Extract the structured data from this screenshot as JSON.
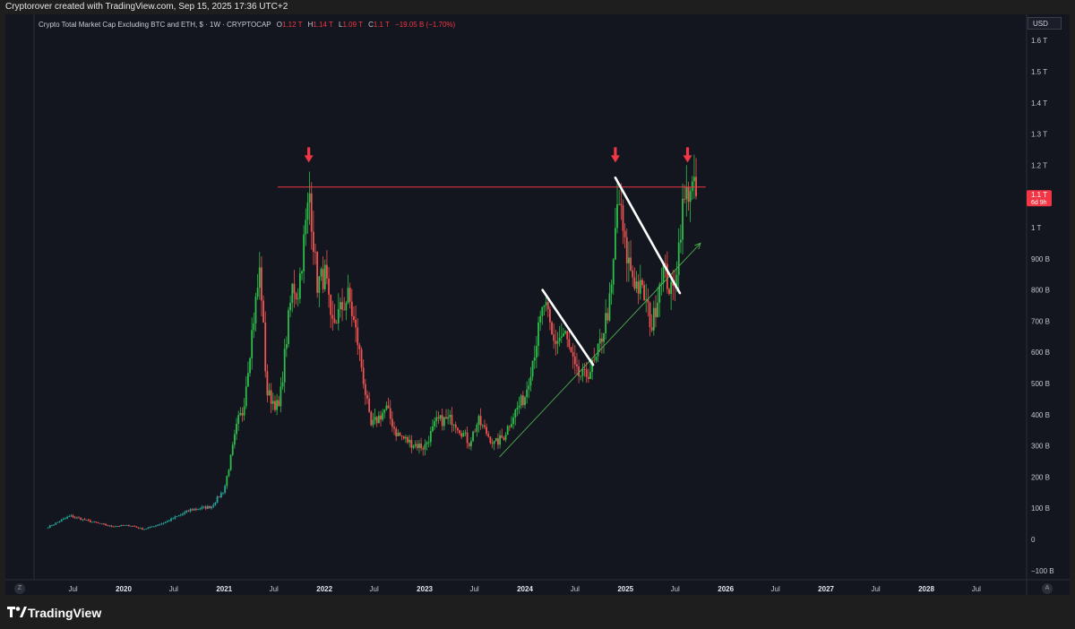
{
  "header": {
    "attribution": "Cryptorover created with TradingView.com, Sep 15, 2025 17:36 UTC+2"
  },
  "legend": {
    "title": "Crypto Total Market Cap Excluding BTC and ETH, $ · 1W · CRYPTOCAP",
    "o_label": "O",
    "o_value": "1.12 T",
    "h_label": "H",
    "h_value": "1.14 T",
    "l_label": "L",
    "l_value": "1.09 T",
    "c_label": "C",
    "c_value": "1.1 T",
    "change": "−19.05 B (−1.70%)"
  },
  "price_scale": {
    "currency": "USD",
    "labels": [
      "1.6 T",
      "1.5 T",
      "1.4 T",
      "1.3 T",
      "1.2 T",
      "1.1 T",
      "1 T",
      "900 B",
      "800 B",
      "700 B",
      "600 B",
      "500 B",
      "400 B",
      "300 B",
      "200 B",
      "100 B",
      "0",
      "−100 B"
    ],
    "current_price": "1.1 T",
    "countdown": "6d 9h"
  },
  "time_scale": {
    "labels": [
      "Jul",
      "2020",
      "Jul",
      "2021",
      "Jul",
      "2022",
      "Jul",
      "2023",
      "Jul",
      "2024",
      "Jul",
      "2025",
      "Jul",
      "2026",
      "Jul",
      "2027",
      "Jul",
      "2028",
      "Jul"
    ],
    "year_labels": [
      "2020",
      "2021",
      "2022",
      "2023",
      "2024",
      "2025",
      "2026",
      "2027",
      "2028"
    ]
  },
  "controls": {
    "z_label": "Z",
    "a_label": "A"
  },
  "branding": {
    "name": "TradingView"
  },
  "colors": {
    "up": "#26a69a",
    "up_bright": "#2ebd4a",
    "down": "#ef5350",
    "resistance": "#f23645",
    "trendline": "#4caf50",
    "channel": "#ffffff",
    "background": "#13161f"
  },
  "chart_data": {
    "type": "candlestick",
    "title": "Crypto Total Market Cap Excluding BTC and ETH, $ · 1W · CRYPTOCAP",
    "interval": "1W",
    "y_unit": "USD",
    "ylim": [
      -120000000000,
      1700000000000
    ],
    "xlim": [
      "2019-04-01",
      "2028-12-31"
    ],
    "grid": false,
    "anchors": [
      [
        "2019-04-01",
        40
      ],
      [
        "2019-06-20",
        75
      ],
      [
        "2019-08-20",
        60
      ],
      [
        "2019-11-15",
        42
      ],
      [
        "2020-01-25",
        45
      ],
      [
        "2020-03-12",
        32
      ],
      [
        "2020-06-01",
        55
      ],
      [
        "2020-09-01",
        95
      ],
      [
        "2020-11-15",
        105
      ],
      [
        "2021-01-01",
        160
      ],
      [
        "2021-01-25",
        260
      ],
      [
        "2021-02-20",
        380
      ],
      [
        "2021-03-10",
        410
      ],
      [
        "2021-04-10",
        650
      ],
      [
        "2021-05-12",
        870
      ],
      [
        "2021-06-05",
        470
      ],
      [
        "2021-07-20",
        420
      ],
      [
        "2021-08-20",
        680
      ],
      [
        "2021-09-08",
        820
      ],
      [
        "2021-09-25",
        780
      ],
      [
        "2021-11-08",
        1110
      ],
      [
        "2021-12-05",
        820
      ],
      [
        "2022-01-05",
        850
      ],
      [
        "2022-01-25",
        680
      ],
      [
        "2022-03-30",
        780
      ],
      [
        "2022-05-05",
        620
      ],
      [
        "2022-06-18",
        360
      ],
      [
        "2022-08-14",
        420
      ],
      [
        "2022-09-20",
        340
      ],
      [
        "2022-11-09",
        310
      ],
      [
        "2022-12-30",
        295
      ],
      [
        "2023-02-15",
        380
      ],
      [
        "2023-04-15",
        385
      ],
      [
        "2023-06-12",
        310
      ],
      [
        "2023-07-15",
        380
      ],
      [
        "2023-09-12",
        305
      ],
      [
        "2023-10-15",
        330
      ],
      [
        "2023-11-20",
        400
      ],
      [
        "2024-01-01",
        460
      ],
      [
        "2024-03-12",
        760
      ],
      [
        "2024-04-12",
        630
      ],
      [
        "2024-05-25",
        660
      ],
      [
        "2024-07-05",
        530
      ],
      [
        "2024-08-05",
        520
      ],
      [
        "2024-09-15",
        570
      ],
      [
        "2024-11-10",
        780
      ],
      [
        "2024-12-05",
        1110
      ],
      [
        "2025-01-01",
        920
      ],
      [
        "2025-02-03",
        830
      ],
      [
        "2025-03-10",
        780
      ],
      [
        "2025-04-08",
        680
      ],
      [
        "2025-05-15",
        880
      ],
      [
        "2025-06-20",
        780
      ],
      [
        "2025-07-10",
        900
      ],
      [
        "2025-07-25",
        1050
      ],
      [
        "2025-08-23",
        1140
      ],
      [
        "2025-09-15",
        1100
      ]
    ],
    "anchor_units": "date, billions USD (weekly OHLC candles interpolated between anchors)",
    "last_candle": {
      "date": "2025-09-15",
      "open": 1120000000000,
      "high": 1140000000000,
      "low": 1090000000000,
      "close": 1100000000000
    },
    "annotations": [
      {
        "type": "horizontal_line",
        "label": "resistance",
        "y": 1130000000000,
        "from": "2021-07-15",
        "to": "2025-10-20",
        "color": "#f23645"
      },
      {
        "type": "trendline",
        "points": [
          [
            "2023-10-01",
            265000000000
          ],
          [
            "2025-10-01",
            950000000000
          ]
        ],
        "color": "#4caf50",
        "arrow": true
      },
      {
        "type": "trendline",
        "points": [
          [
            "2024-03-05",
            800000000000
          ],
          [
            "2024-09-05",
            560000000000
          ]
        ],
        "color": "#ffffff"
      },
      {
        "type": "trendline",
        "points": [
          [
            "2024-11-25",
            1160000000000
          ],
          [
            "2025-07-18",
            790000000000
          ]
        ],
        "color": "#ffffff"
      },
      {
        "type": "arrow_down",
        "at": [
          "2021-11-05",
          1200000000000
        ],
        "color": "#f23645"
      },
      {
        "type": "arrow_down",
        "at": [
          "2024-11-25",
          1200000000000
        ],
        "color": "#f23645"
      },
      {
        "type": "arrow_down",
        "at": [
          "2025-08-15",
          1200000000000
        ],
        "color": "#f23645"
      }
    ]
  }
}
